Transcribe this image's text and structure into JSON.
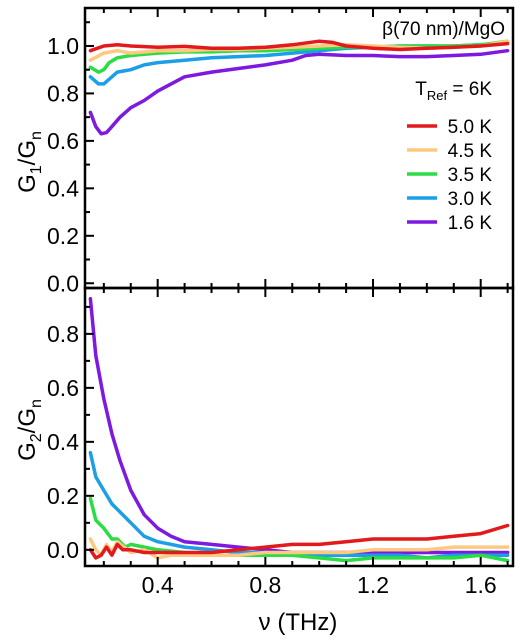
{
  "chart_data": [
    {
      "type": "line",
      "panel": "top",
      "annotation": "β(70 nm)/MgO",
      "reference_label": {
        "main": "T",
        "sub": "Ref",
        "rest": " = 6K"
      },
      "ylabel": {
        "main": "G",
        "sub": "1",
        "mid": "/G",
        "sub2": "n"
      },
      "xlim": [
        0.13,
        1.72
      ],
      "ylim": [
        -0.02,
        1.16
      ],
      "yticks": [
        "0.0",
        "0.2",
        "0.4",
        "0.6",
        "0.8",
        "1.0"
      ],
      "grid": false,
      "legend_position": "right",
      "series": [
        {
          "name": "5.0 K",
          "color": "#e31a1c",
          "x": [
            0.15,
            0.2,
            0.25,
            0.3,
            0.4,
            0.5,
            0.6,
            0.7,
            0.8,
            0.9,
            1.0,
            1.05,
            1.1,
            1.2,
            1.3,
            1.4,
            1.5,
            1.6,
            1.7
          ],
          "y": [
            0.98,
            1.0,
            1.005,
            1.0,
            0.995,
            0.998,
            0.99,
            0.99,
            0.995,
            1.005,
            1.02,
            1.015,
            1.0,
            0.99,
            0.985,
            0.99,
            0.995,
            1.0,
            1.01
          ]
        },
        {
          "name": "4.5 K",
          "color": "#fdc97f",
          "x": [
            0.15,
            0.2,
            0.25,
            0.3,
            0.4,
            0.5,
            0.6,
            0.7,
            0.8,
            0.9,
            1.0,
            1.1,
            1.2,
            1.3,
            1.4,
            1.5,
            1.6,
            1.7
          ],
          "y": [
            0.94,
            0.97,
            0.98,
            0.97,
            0.98,
            0.98,
            0.985,
            0.985,
            0.99,
            0.995,
            1.0,
            1.005,
            1.0,
            0.995,
            0.99,
            0.995,
            1.0,
            1.02
          ]
        },
        {
          "name": "3.5 K",
          "color": "#2bdc45",
          "x": [
            0.15,
            0.18,
            0.2,
            0.22,
            0.25,
            0.3,
            0.35,
            0.4,
            0.5,
            0.6,
            0.7,
            0.8,
            0.9,
            1.0,
            1.1,
            1.2,
            1.3,
            1.4,
            1.5,
            1.6,
            1.7
          ],
          "y": [
            0.91,
            0.89,
            0.9,
            0.93,
            0.95,
            0.96,
            0.965,
            0.97,
            0.975,
            0.975,
            0.98,
            0.98,
            0.985,
            0.99,
            0.995,
            0.995,
            1.0,
            1.0,
            1.0,
            1.005,
            1.02
          ]
        },
        {
          "name": "3.0 K",
          "color": "#1c9fe6",
          "x": [
            0.15,
            0.18,
            0.2,
            0.22,
            0.25,
            0.3,
            0.35,
            0.4,
            0.5,
            0.6,
            0.7,
            0.8,
            0.9,
            1.0,
            1.1,
            1.2,
            1.3,
            1.4,
            1.5,
            1.6,
            1.7
          ],
          "y": [
            0.87,
            0.84,
            0.84,
            0.86,
            0.89,
            0.9,
            0.92,
            0.93,
            0.94,
            0.95,
            0.955,
            0.96,
            0.97,
            0.98,
            0.99,
            0.995,
            1.0,
            1.0,
            1.0,
            1.005,
            1.015
          ]
        },
        {
          "name": "1.6 K",
          "color": "#7e19e0",
          "x": [
            0.15,
            0.17,
            0.19,
            0.21,
            0.23,
            0.26,
            0.3,
            0.35,
            0.4,
            0.45,
            0.5,
            0.6,
            0.7,
            0.8,
            0.9,
            0.95,
            1.0,
            1.1,
            1.2,
            1.3,
            1.4,
            1.5,
            1.6,
            1.7
          ],
          "y": [
            0.72,
            0.66,
            0.63,
            0.635,
            0.66,
            0.7,
            0.74,
            0.77,
            0.81,
            0.84,
            0.87,
            0.89,
            0.905,
            0.92,
            0.94,
            0.96,
            0.965,
            0.96,
            0.96,
            0.955,
            0.955,
            0.96,
            0.965,
            0.98
          ]
        }
      ]
    },
    {
      "type": "line",
      "panel": "bottom",
      "xlabel": "ν (THz)",
      "ylabel": {
        "main": "G",
        "sub": "2",
        "mid": "/G",
        "sub2": "n"
      },
      "xlim": [
        0.13,
        1.72
      ],
      "ylim": [
        -0.06,
        0.97
      ],
      "xticks": [
        "0.4",
        "0.8",
        "1.2",
        "1.6"
      ],
      "yticks": [
        "0.0",
        "0.2",
        "0.4",
        "0.6",
        "0.8"
      ],
      "grid": false,
      "series": [
        {
          "name": "5.0 K",
          "color": "#e31a1c",
          "x": [
            0.15,
            0.17,
            0.19,
            0.21,
            0.23,
            0.25,
            0.27,
            0.3,
            0.35,
            0.4,
            0.5,
            0.6,
            0.7,
            0.8,
            0.9,
            1.0,
            1.1,
            1.2,
            1.3,
            1.4,
            1.5,
            1.6,
            1.7
          ],
          "y": [
            0.0,
            -0.03,
            -0.02,
            0.01,
            -0.02,
            0.02,
            0.0,
            0.0,
            -0.01,
            -0.01,
            -0.01,
            -0.01,
            0.0,
            0.01,
            0.02,
            0.02,
            0.03,
            0.04,
            0.04,
            0.04,
            0.05,
            0.06,
            0.09
          ]
        },
        {
          "name": "4.5 K",
          "color": "#fdc97f",
          "x": [
            0.15,
            0.17,
            0.19,
            0.21,
            0.23,
            0.25,
            0.3,
            0.35,
            0.4,
            0.45,
            0.5,
            0.6,
            0.7,
            0.8,
            0.9,
            1.0,
            1.1,
            1.2,
            1.3,
            1.4,
            1.5,
            1.6,
            1.7
          ],
          "y": [
            0.04,
            0.0,
            -0.02,
            0.02,
            -0.01,
            0.03,
            -0.01,
            0.0,
            -0.03,
            -0.02,
            -0.02,
            -0.02,
            -0.02,
            -0.01,
            -0.01,
            -0.01,
            -0.01,
            0.0,
            0.0,
            0.0,
            0.01,
            0.01,
            0.01
          ]
        },
        {
          "name": "3.5 K",
          "color": "#2bdc45",
          "x": [
            0.15,
            0.17,
            0.2,
            0.23,
            0.25,
            0.28,
            0.3,
            0.35,
            0.4,
            0.5,
            0.6,
            0.7,
            0.8,
            0.9,
            1.0,
            1.1,
            1.2,
            1.3,
            1.4,
            1.5,
            1.6,
            1.7
          ],
          "y": [
            0.19,
            0.11,
            0.08,
            0.04,
            0.04,
            0.01,
            0.02,
            0.01,
            0.0,
            -0.01,
            -0.02,
            -0.02,
            -0.02,
            -0.02,
            -0.03,
            -0.04,
            -0.03,
            -0.03,
            -0.03,
            -0.03,
            -0.02,
            -0.04
          ]
        },
        {
          "name": "3.0 K",
          "color": "#1c9fe6",
          "x": [
            0.15,
            0.17,
            0.2,
            0.23,
            0.26,
            0.3,
            0.35,
            0.4,
            0.5,
            0.6,
            0.7,
            0.8,
            0.9,
            1.0,
            1.1,
            1.2,
            1.3,
            1.4,
            1.5,
            1.6,
            1.7
          ],
          "y": [
            0.36,
            0.27,
            0.22,
            0.17,
            0.14,
            0.1,
            0.05,
            0.03,
            0.01,
            0.0,
            -0.01,
            -0.01,
            -0.02,
            -0.02,
            -0.02,
            -0.02,
            -0.02,
            -0.03,
            -0.02,
            -0.02,
            -0.02
          ]
        },
        {
          "name": "1.6 K",
          "color": "#7e19e0",
          "x": [
            0.15,
            0.17,
            0.2,
            0.23,
            0.26,
            0.3,
            0.35,
            0.4,
            0.45,
            0.5,
            0.6,
            0.7,
            0.8,
            0.9,
            1.0,
            1.1,
            1.2,
            1.3,
            1.4,
            1.5,
            1.6,
            1.7
          ],
          "y": [
            0.93,
            0.72,
            0.56,
            0.43,
            0.33,
            0.22,
            0.13,
            0.08,
            0.05,
            0.03,
            0.02,
            0.01,
            0.0,
            -0.01,
            -0.01,
            -0.01,
            -0.01,
            -0.01,
            -0.01,
            -0.01,
            -0.01,
            -0.01
          ]
        }
      ]
    }
  ]
}
